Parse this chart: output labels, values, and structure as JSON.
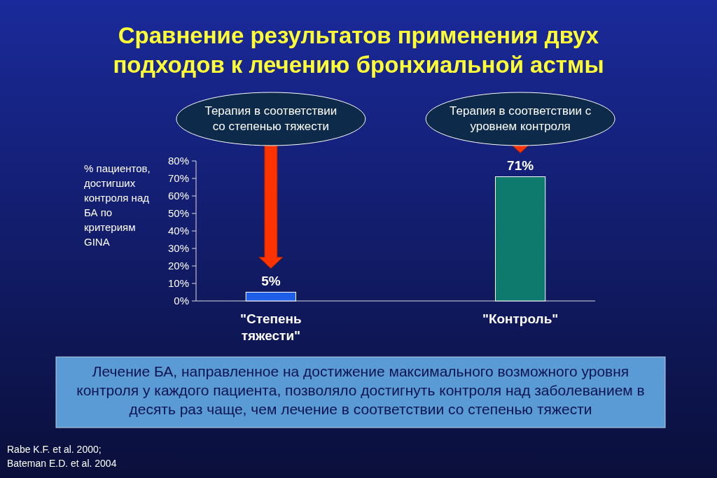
{
  "chart_data": {
    "type": "bar",
    "title": "Сравнение результатов применения двух подходов к лечению бронхиальной астмы",
    "ylabel": "% пациентов, достигших контроля над БА по критериям GINA",
    "categories": [
      "\"Степень тяжести\"",
      "\"Контроль\""
    ],
    "values": [
      5,
      71
    ],
    "colors": [
      "#1f5fe8",
      "#0e7a6e"
    ],
    "value_labels": [
      "5%",
      "71%"
    ],
    "ylim": [
      0,
      80
    ],
    "yticks": [
      {
        "value": 0,
        "label": "0%"
      },
      {
        "value": 10,
        "label": "10%"
      },
      {
        "value": 20,
        "label": "20%"
      },
      {
        "value": 30,
        "label": "30%"
      },
      {
        "value": 40,
        "label": "40%"
      },
      {
        "value": 50,
        "label": "50%"
      },
      {
        "value": 60,
        "label": "60%"
      },
      {
        "value": 70,
        "label": "70%"
      },
      {
        "value": 80,
        "label": "80%"
      }
    ],
    "annotations": [
      "Терапия в соответствии со степенью тяжести",
      "Терапия в соответствии с уровнем контроля",
      "Лечение БА, направленное на достижение максимального возможного уровня контроля у каждого пациента, позволяло достигнуть контроля над заболеванием в десять раз чаще, чем лечение в соответствии со степенью тяжести",
      "Rabe K.F. et al.  2000; Bateman E.D. et al. 2004"
    ]
  }
}
